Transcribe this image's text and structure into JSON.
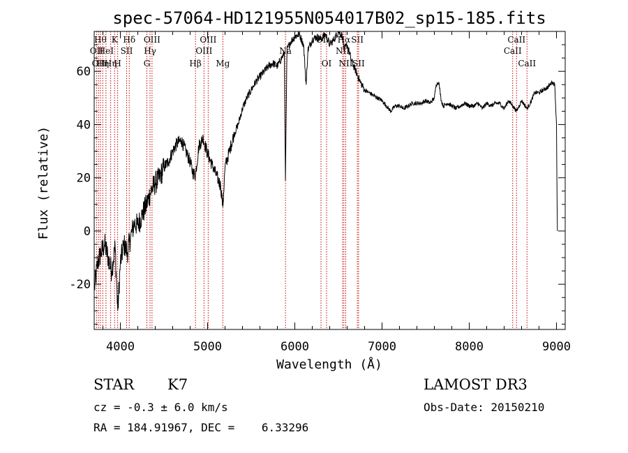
{
  "chart_data": {
    "type": "line",
    "title": "spec-57064-HD121955N054017B02_sp15-185.fits",
    "xlabel": "Wavelength (Å)",
    "ylabel": "Flux (relative)",
    "xlim": [
      3700,
      9100
    ],
    "ylim": [
      -37,
      75
    ],
    "x_ticks": [
      4000,
      5000,
      6000,
      7000,
      8000,
      9000
    ],
    "y_ticks": [
      -20,
      0,
      20,
      40,
      60
    ],
    "series": [
      {
        "name": "spectrum",
        "x": [
          3700,
          3740,
          3780,
          3820,
          3860,
          3900,
          3940,
          3970,
          4000,
          4040,
          4080,
          4120,
          4160,
          4200,
          4250,
          4300,
          4350,
          4400,
          4450,
          4500,
          4550,
          4600,
          4650,
          4700,
          4750,
          4800,
          4830,
          4861,
          4900,
          4950,
          5000,
          5050,
          5100,
          5150,
          5175,
          5200,
          5250,
          5300,
          5350,
          5400,
          5450,
          5500,
          5550,
          5600,
          5650,
          5700,
          5750,
          5800,
          5850,
          5880,
          5893,
          5910,
          5950,
          6000,
          6050,
          6100,
          6130,
          6150,
          6200,
          6250,
          6300,
          6350,
          6400,
          6450,
          6500,
          6550,
          6563,
          6600,
          6650,
          6700,
          6750,
          6800,
          6850,
          6900,
          6950,
          7000,
          7050,
          7100,
          7150,
          7200,
          7250,
          7300,
          7350,
          7400,
          7450,
          7500,
          7550,
          7600,
          7620,
          7650,
          7680,
          7700,
          7750,
          7800,
          7850,
          7900,
          7950,
          8000,
          8050,
          8100,
          8150,
          8200,
          8250,
          8300,
          8350,
          8400,
          8450,
          8500,
          8542,
          8600,
          8662,
          8700,
          8750,
          8800,
          8850,
          8900,
          8950,
          8980,
          9000,
          9010
        ],
        "y": [
          -22,
          -12,
          -8,
          -5,
          -10,
          -15,
          -6,
          -30,
          -12,
          -5,
          -8,
          -2,
          3,
          2,
          6,
          10,
          15,
          18,
          20,
          24,
          26,
          30,
          33,
          34,
          30,
          26,
          22,
          21,
          32,
          35,
          29,
          25,
          21,
          17,
          9,
          24,
          30,
          36,
          40,
          46,
          50,
          53,
          56,
          58,
          60,
          62,
          63,
          62,
          65,
          67,
          19,
          68,
          71,
          73,
          74,
          70,
          55,
          68,
          72,
          73,
          72,
          74,
          70,
          72,
          75,
          73,
          68,
          70,
          64,
          60,
          56,
          53,
          52,
          51,
          50,
          49,
          47,
          45,
          47,
          47,
          46,
          47,
          48,
          48,
          48,
          49,
          48,
          50,
          55,
          56,
          49,
          47,
          48,
          47,
          46,
          47,
          48,
          47,
          47,
          48,
          46,
          48,
          47,
          48,
          48,
          46,
          49,
          47,
          45,
          49,
          46,
          48,
          52,
          52,
          53,
          54,
          56,
          55,
          40,
          0
        ]
      }
    ],
    "line_markers": [
      {
        "wave": 3727,
        "label": "OII",
        "row": 2
      },
      {
        "wave": 3750,
        "label": "OII",
        "row": 3
      },
      {
        "wave": 3771,
        "label": "Hθ",
        "row": 1
      },
      {
        "wave": 3798,
        "label": "Hη",
        "row": 3
      },
      {
        "wave": 3835,
        "label": "HeI",
        "row": 2
      },
      {
        "wave": 3889,
        "label": "Hη",
        "row": 3
      },
      {
        "wave": 3934,
        "label": "K",
        "row": 1
      },
      {
        "wave": 3969,
        "label": "H",
        "row": 3
      },
      {
        "wave": 4072,
        "label": "SII",
        "row": 2
      },
      {
        "wave": 4102,
        "label": "Hδ",
        "row": 1
      },
      {
        "wave": 4304,
        "label": "G",
        "row": 3
      },
      {
        "wave": 4340,
        "label": "Hγ",
        "row": 2
      },
      {
        "wave": 4363,
        "label": "OIII",
        "row": 1
      },
      {
        "wave": 4861,
        "label": "Hβ",
        "row": 3
      },
      {
        "wave": 4959,
        "label": "OIII",
        "row": 2
      },
      {
        "wave": 5007,
        "label": "OIII",
        "row": 1
      },
      {
        "wave": 5175,
        "label": "Mg",
        "row": 3
      },
      {
        "wave": 5893,
        "label": "Na",
        "row": 2
      },
      {
        "wave": 6300,
        "label": "OI",
        "row": 1
      },
      {
        "wave": 6364,
        "label": "OI",
        "row": 3
      },
      {
        "wave": 6548,
        "label": "NII",
        "row": 2
      },
      {
        "wave": 6563,
        "label": "Hα",
        "row": 1
      },
      {
        "wave": 6584,
        "label": "NII",
        "row": 3
      },
      {
        "wave": 6717,
        "label": "SII",
        "row": 1
      },
      {
        "wave": 6731,
        "label": "SII",
        "row": 3
      },
      {
        "wave": 8498,
        "label": "CaII",
        "row": 2
      },
      {
        "wave": 8542,
        "label": "CaII",
        "row": 1
      },
      {
        "wave": 8662,
        "label": "CaII",
        "row": 3
      }
    ]
  },
  "info": {
    "object_class": "STAR",
    "subclass": "K7",
    "redshift": "cz = -0.3 ± 6.0 km/s",
    "coords": "RA = 184.91967, DEC =    6.33296",
    "survey": "LAMOST DR3",
    "obs_date": "Obs-Date: 20150210"
  }
}
